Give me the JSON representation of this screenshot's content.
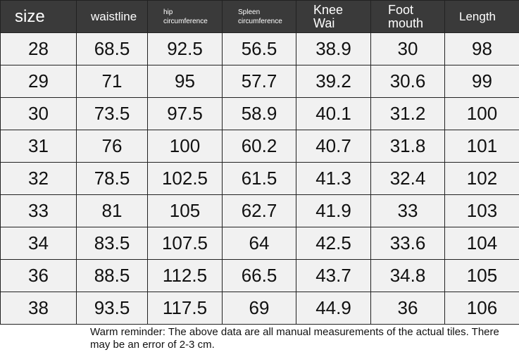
{
  "table": {
    "header": [
      [
        "size"
      ],
      [
        "waistline"
      ],
      [
        "hip",
        "circumference"
      ],
      [
        "Spleen",
        "circumference"
      ],
      [
        "Knee",
        "Wai"
      ],
      [
        "Foot",
        "mouth"
      ],
      [
        "Length"
      ]
    ],
    "rows": [
      [
        "28",
        "68.5",
        "92.5",
        "56.5",
        "38.9",
        "30",
        "98"
      ],
      [
        "29",
        "71",
        "95",
        "57.7",
        "39.2",
        "30.6",
        "99"
      ],
      [
        "30",
        "73.5",
        "97.5",
        "58.9",
        "40.1",
        "31.2",
        "100"
      ],
      [
        "31",
        "76",
        "100",
        "60.2",
        "40.7",
        "31.8",
        "101"
      ],
      [
        "32",
        "78.5",
        "102.5",
        "61.5",
        "41.3",
        "32.4",
        "102"
      ],
      [
        "33",
        "81",
        "105",
        "62.7",
        "41.9",
        "33",
        "103"
      ],
      [
        "34",
        "83.5",
        "107.5",
        "64",
        "42.5",
        "33.6",
        "104"
      ],
      [
        "36",
        "88.5",
        "112.5",
        "66.5",
        "43.7",
        "34.8",
        "105"
      ],
      [
        "38",
        "93.5",
        "117.5",
        "69",
        "44.9",
        "36",
        "106"
      ]
    ]
  },
  "note": "Warm reminder: The above data are all manual measurements of the actual tiles. There may be an error of 2-3 cm."
}
